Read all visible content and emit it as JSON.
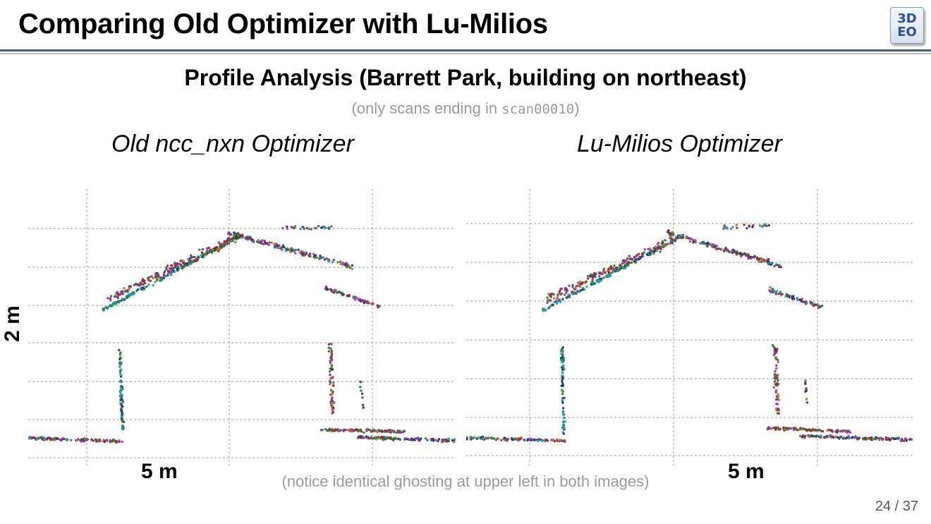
{
  "slide": {
    "title": "Comparing Old Optimizer with Lu-Milios",
    "logo_text": "3D\nEO",
    "subtitle": "Profile Analysis (Barrett Park, building on northeast)",
    "note_prefix": "(only scans ending in ",
    "note_code": "scan00010",
    "note_suffix": ")",
    "footnote": "(notice identical ghosting at upper left in both images)",
    "page_number": "24 / 37"
  },
  "panels": [
    {
      "title": "Old ncc_nxn Optimizer",
      "scale_h": "5 m",
      "scale_v": "2 m"
    },
    {
      "title": "Lu-Milios Optimizer",
      "scale_h": "5 m"
    }
  ],
  "colors": {
    "rule": "#4a5a8c",
    "grid": "#9a9a9a",
    "points": [
      "#d6262b",
      "#2aa12a",
      "#d43fcf",
      "#1f3fb0",
      "#23c6d6",
      "#e08a1e",
      "#8a3ad6"
    ]
  }
}
